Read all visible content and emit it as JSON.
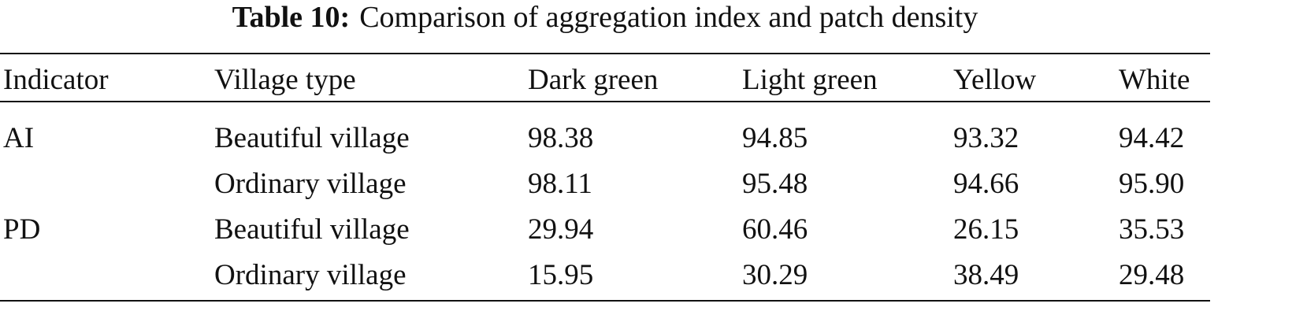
{
  "caption": {
    "label": "Table 10:",
    "text": "Comparison of aggregation index and patch density"
  },
  "table": {
    "header": [
      "Indicator",
      "Village type",
      "Dark green",
      "Light green",
      "Yellow",
      "White"
    ],
    "groups": [
      {
        "indicator": "AI",
        "rows": [
          [
            "Beautiful village",
            "98.38",
            "94.85",
            "93.32",
            "94.42"
          ],
          [
            "Ordinary village",
            "98.11",
            "95.48",
            "94.66",
            "95.90"
          ]
        ]
      },
      {
        "indicator": "PD",
        "rows": [
          [
            "Beautiful village",
            "29.94",
            "60.46",
            "26.15",
            "35.53"
          ],
          [
            "Ordinary village",
            "15.95",
            "30.29",
            "38.49",
            "29.48"
          ]
        ]
      }
    ]
  }
}
